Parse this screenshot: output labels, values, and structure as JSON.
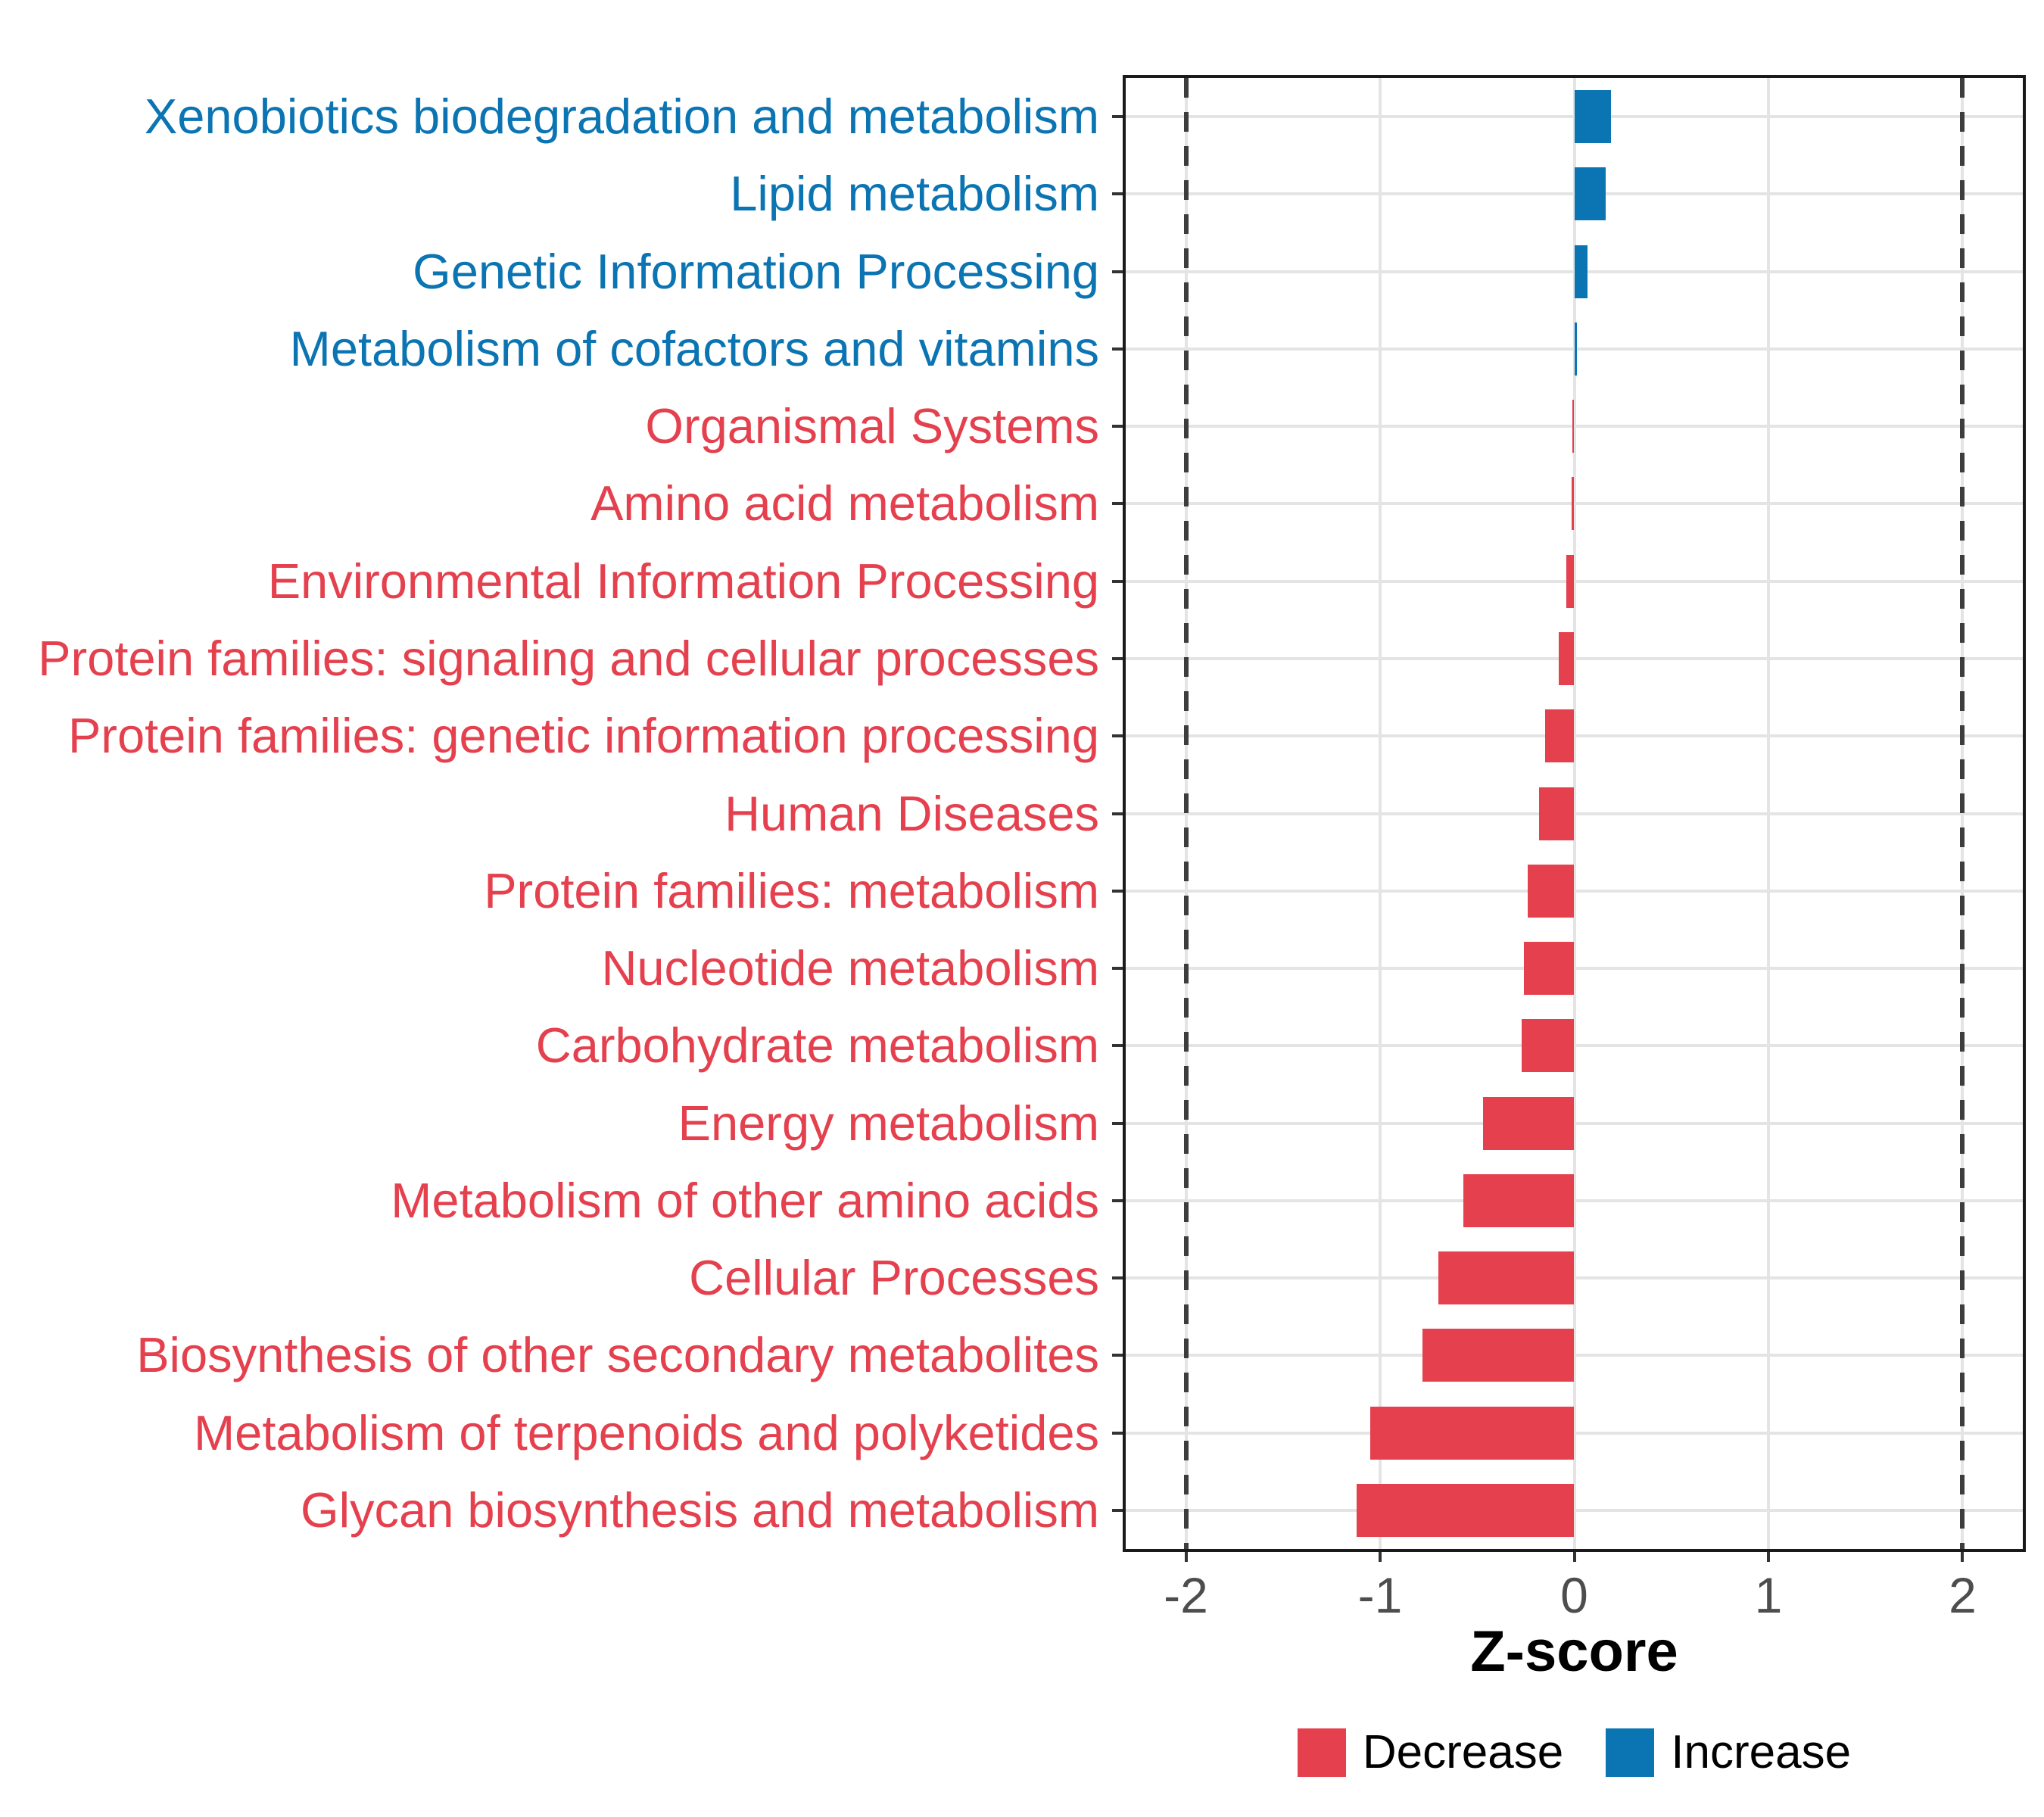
{
  "chart_data": {
    "type": "bar",
    "orientation": "horizontal",
    "xlabel": "Z-score",
    "xlim": [
      -2.31,
      2.31
    ],
    "x_ticks": [
      -2,
      -1,
      0,
      1,
      2
    ],
    "x_tick_labels": [
      "-2",
      "-1",
      "0",
      "1",
      "2"
    ],
    "grid": "major",
    "reference_lines": {
      "values": [
        -2,
        2
      ],
      "style": "dashed",
      "color": "#3d3d3d"
    },
    "categories": [
      "Xenobiotics biodegradation and metabolism",
      "Lipid metabolism",
      "Genetic Information Processing",
      "Metabolism of cofactors and vitamins",
      "Organismal Systems",
      "Amino acid metabolism",
      "Environmental Information Processing",
      "Protein families: signaling and cellular processes",
      "Protein families: genetic information processing",
      "Human Diseases",
      "Protein families: metabolism",
      "Nucleotide metabolism",
      "Carbohydrate metabolism",
      "Energy metabolism",
      "Metabolism of other amino acids",
      "Cellular Processes",
      "Biosynthesis of other secondary metabolites",
      "Metabolism of terpenoids and polyketides",
      "Glycan biosynthesis and metabolism"
    ],
    "values": [
      0.19,
      0.16,
      0.07,
      0.015,
      -0.01,
      -0.015,
      -0.04,
      -0.08,
      -0.15,
      -0.18,
      -0.24,
      -0.26,
      -0.27,
      -0.47,
      -0.57,
      -0.7,
      -0.78,
      -1.05,
      -1.12
    ],
    "groups": [
      "Increase",
      "Increase",
      "Increase",
      "Increase",
      "Decrease",
      "Decrease",
      "Decrease",
      "Decrease",
      "Decrease",
      "Decrease",
      "Decrease",
      "Decrease",
      "Decrease",
      "Decrease",
      "Decrease",
      "Decrease",
      "Decrease",
      "Decrease",
      "Decrease"
    ],
    "colors": {
      "Decrease": "#e5404e",
      "Increase": "#0b74b2"
    },
    "legend_position": "bottom"
  },
  "legend": {
    "entries": [
      {
        "label": "Decrease",
        "color": "#e5404e"
      },
      {
        "label": "Increase",
        "color": "#0b74b2"
      }
    ]
  },
  "style": {
    "grid_color": "#e4e4e4",
    "tick_color": "#333333",
    "tick_label_color": "#4d4d4d",
    "panel_border_color": "#1a1a1a"
  }
}
